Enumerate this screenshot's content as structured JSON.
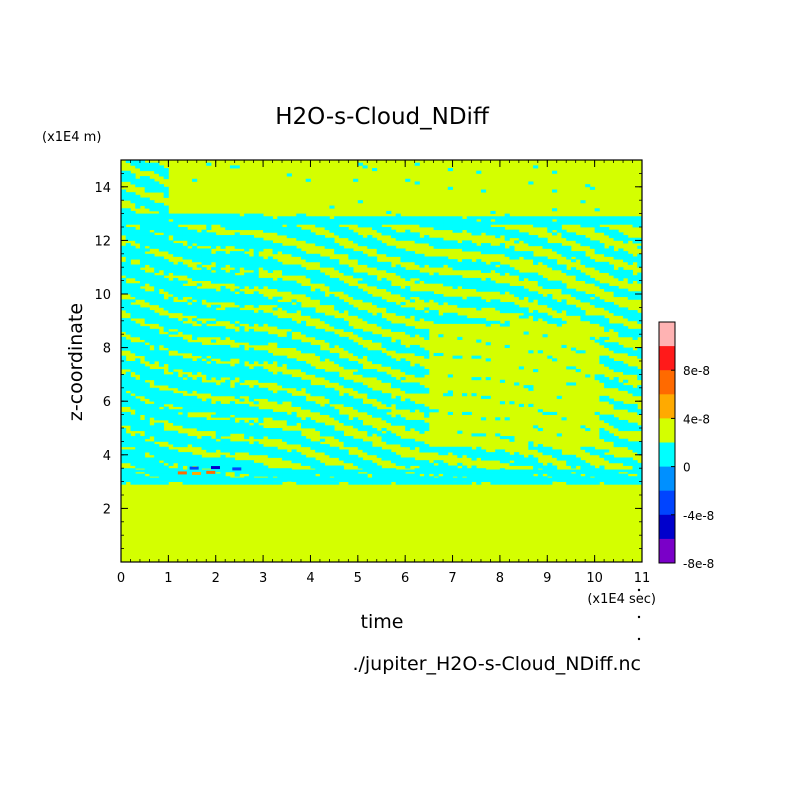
{
  "chart_data": {
    "type": "heatmap",
    "title": "H2O-s-Cloud_NDiff",
    "xlabel": "time",
    "ylabel": "z-coordinate",
    "x_unit": "(x1E4 sec)",
    "y_unit": "(x1E4 m)",
    "xlim": [
      0,
      11
    ],
    "ylim": [
      0,
      15
    ],
    "x_ticks": [
      0,
      1,
      2,
      3,
      4,
      5,
      6,
      7,
      8,
      9,
      10,
      11
    ],
    "y_ticks": [
      2,
      4,
      6,
      8,
      10,
      12,
      14
    ],
    "colorbar": {
      "labels": [
        "8e-8",
        "4e-8",
        "0",
        "-4e-8",
        "-8e-8"
      ],
      "label_values": [
        8e-08,
        4e-08,
        0,
        -4e-08,
        -8e-08
      ],
      "levels": [
        {
          "value": 1e-07,
          "color": "#ffb3b3"
        },
        {
          "value": 8e-08,
          "color": "#ff1a1a"
        },
        {
          "value": 6e-08,
          "color": "#ff6a00"
        },
        {
          "value": 4e-08,
          "color": "#ffaa00"
        },
        {
          "value": 2e-08,
          "color": "#d4ff00"
        },
        {
          "value": 0,
          "color": "#00ffff"
        },
        {
          "value": -2e-08,
          "color": "#0090ff"
        },
        {
          "value": -4e-08,
          "color": "#0044ff"
        },
        {
          "value": -6e-08,
          "color": "#0000cc"
        },
        {
          "value": -8e-08,
          "color": "#7a00c8"
        }
      ]
    },
    "base_color": "#d4ff00",
    "band_color": "#00ffff",
    "regions": {
      "lower_uniform_top": 2.9,
      "cloud_deck_top": 13.0,
      "cloud_top_after_3": 12.9,
      "dense_band_until": 3.0
    },
    "source_file": "./jupiter_H2O-s-Cloud_NDiff.nc"
  }
}
